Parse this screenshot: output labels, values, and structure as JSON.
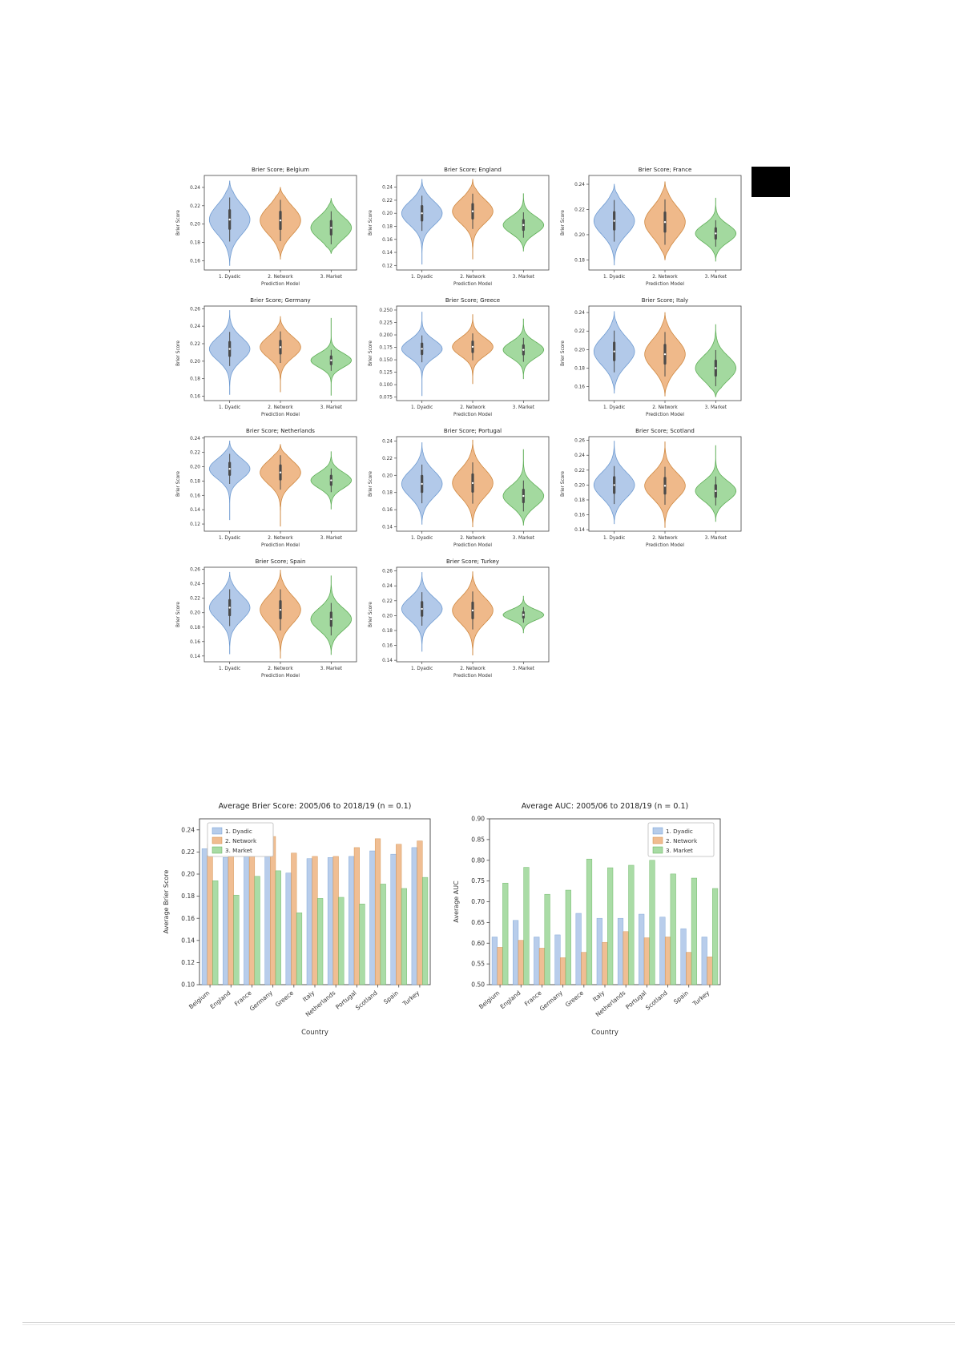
{
  "page": {
    "background": "#ffffff",
    "marker_color": "#000000"
  },
  "palette": {
    "dyadic": {
      "fill": "#aec6e8",
      "edge": "#6f9bd1"
    },
    "network": {
      "fill": "#eeb584",
      "edge": "#cf8942"
    },
    "market": {
      "fill": "#9ed79a",
      "edge": "#5fae57"
    }
  },
  "models": [
    "1. Dyadic",
    "2. Network",
    "3. Market"
  ],
  "chart_data": [
    {
      "type": "violin",
      "title": "Brier Score; Belgium",
      "xlabel": "Prediction Model",
      "ylabel": "Brier Score",
      "categories": [
        "1. Dyadic",
        "2. Network",
        "3. Market"
      ],
      "ylim": [
        0.15,
        0.253
      ],
      "yticks": [
        0.16,
        0.18,
        0.2,
        0.22,
        0.24
      ],
      "tick_decimals": 2,
      "series": [
        {
          "name": "1. Dyadic",
          "median": 0.205,
          "spread": 0.016,
          "min": 0.155,
          "max": 0.247
        },
        {
          "name": "2. Network",
          "median": 0.204,
          "spread": 0.015,
          "min": 0.162,
          "max": 0.24
        },
        {
          "name": "3. Market",
          "median": 0.196,
          "spread": 0.012,
          "min": 0.168,
          "max": 0.228
        }
      ]
    },
    {
      "type": "violin",
      "title": "Brier Score; England",
      "xlabel": "Prediction Model",
      "ylabel": "Brier Score",
      "categories": [
        "1. Dyadic",
        "2. Network",
        "3. Market"
      ],
      "ylim": [
        0.113,
        0.258
      ],
      "yticks": [
        0.12,
        0.14,
        0.16,
        0.18,
        0.2,
        0.22,
        0.24
      ],
      "tick_decimals": 2,
      "series": [
        {
          "name": "1. Dyadic",
          "median": 0.2,
          "spread": 0.018,
          "min": 0.122,
          "max": 0.252
        },
        {
          "name": "2. Network",
          "median": 0.203,
          "spread": 0.018,
          "min": 0.13,
          "max": 0.252
        },
        {
          "name": "3. Market",
          "median": 0.182,
          "spread": 0.013,
          "min": 0.142,
          "max": 0.23
        }
      ]
    },
    {
      "type": "violin",
      "title": "Brier Score; France",
      "xlabel": "Prediction Model",
      "ylabel": "Brier Score",
      "categories": [
        "1. Dyadic",
        "2. Network",
        "3. Market"
      ],
      "ylim": [
        0.172,
        0.247
      ],
      "yticks": [
        0.18,
        0.2,
        0.22,
        0.24
      ],
      "tick_decimals": 2,
      "series": [
        {
          "name": "1. Dyadic",
          "median": 0.211,
          "spread": 0.011,
          "min": 0.176,
          "max": 0.24
        },
        {
          "name": "2. Network",
          "median": 0.21,
          "spread": 0.012,
          "min": 0.18,
          "max": 0.242
        },
        {
          "name": "3. Market",
          "median": 0.201,
          "spread": 0.007,
          "min": 0.179,
          "max": 0.229
        }
      ]
    },
    {
      "type": "violin",
      "title": "Brier Score; Germany",
      "xlabel": "Prediction Model",
      "ylabel": "Brier Score",
      "categories": [
        "1. Dyadic",
        "2. Network",
        "3. Market"
      ],
      "ylim": [
        0.155,
        0.263
      ],
      "yticks": [
        0.16,
        0.18,
        0.2,
        0.22,
        0.24,
        0.26
      ],
      "tick_decimals": 2,
      "series": [
        {
          "name": "1. Dyadic",
          "median": 0.214,
          "spread": 0.013,
          "min": 0.162,
          "max": 0.258
        },
        {
          "name": "2. Network",
          "median": 0.216,
          "spread": 0.012,
          "min": 0.165,
          "max": 0.251
        },
        {
          "name": "3. Market",
          "median": 0.201,
          "spread": 0.008,
          "min": 0.161,
          "max": 0.249
        }
      ]
    },
    {
      "type": "violin",
      "title": "Brier Score; Greece",
      "xlabel": "Prediction Model",
      "ylabel": "Brier Score",
      "categories": [
        "1. Dyadic",
        "2. Network",
        "3. Market"
      ],
      "ylim": [
        0.068,
        0.258
      ],
      "yticks": [
        0.075,
        0.1,
        0.125,
        0.15,
        0.175,
        0.2,
        0.225,
        0.25
      ],
      "tick_decimals": 3,
      "series": [
        {
          "name": "1. Dyadic",
          "median": 0.172,
          "spread": 0.018,
          "min": 0.078,
          "max": 0.246
        },
        {
          "name": "2. Network",
          "median": 0.176,
          "spread": 0.018,
          "min": 0.102,
          "max": 0.241
        },
        {
          "name": "3. Market",
          "median": 0.17,
          "spread": 0.016,
          "min": 0.112,
          "max": 0.232
        }
      ]
    },
    {
      "type": "violin",
      "title": "Brier Score; Italy",
      "xlabel": "Prediction Model",
      "ylabel": "Brier Score",
      "categories": [
        "1. Dyadic",
        "2. Network",
        "3. Market"
      ],
      "ylim": [
        0.145,
        0.247
      ],
      "yticks": [
        0.16,
        0.18,
        0.2,
        0.22,
        0.24
      ],
      "tick_decimals": 2,
      "series": [
        {
          "name": "1. Dyadic",
          "median": 0.198,
          "spread": 0.015,
          "min": 0.153,
          "max": 0.241
        },
        {
          "name": "2. Network",
          "median": 0.195,
          "spread": 0.016,
          "min": 0.15,
          "max": 0.24
        },
        {
          "name": "3. Market",
          "median": 0.18,
          "spread": 0.013,
          "min": 0.149,
          "max": 0.227
        }
      ]
    },
    {
      "type": "violin",
      "title": "Brier Score; Netherlands",
      "xlabel": "Prediction Model",
      "ylabel": "Brier Score",
      "categories": [
        "1. Dyadic",
        "2. Network",
        "3. Market"
      ],
      "ylim": [
        0.11,
        0.242
      ],
      "yticks": [
        0.12,
        0.14,
        0.16,
        0.18,
        0.2,
        0.22,
        0.24
      ],
      "tick_decimals": 2,
      "series": [
        {
          "name": "1. Dyadic",
          "median": 0.197,
          "spread": 0.014,
          "min": 0.126,
          "max": 0.236
        },
        {
          "name": "2. Network",
          "median": 0.192,
          "spread": 0.016,
          "min": 0.117,
          "max": 0.231
        },
        {
          "name": "3. Market",
          "median": 0.181,
          "spread": 0.011,
          "min": 0.141,
          "max": 0.221
        }
      ]
    },
    {
      "type": "violin",
      "title": "Brier Score; Portugal",
      "xlabel": "Prediction Model",
      "ylabel": "Brier Score",
      "categories": [
        "1. Dyadic",
        "2. Network",
        "3. Market"
      ],
      "ylim": [
        0.135,
        0.245
      ],
      "yticks": [
        0.14,
        0.16,
        0.18,
        0.2,
        0.22,
        0.24
      ],
      "tick_decimals": 2,
      "series": [
        {
          "name": "1. Dyadic",
          "median": 0.19,
          "spread": 0.015,
          "min": 0.143,
          "max": 0.238
        },
        {
          "name": "2. Network",
          "median": 0.191,
          "spread": 0.016,
          "min": 0.14,
          "max": 0.241
        },
        {
          "name": "3. Market",
          "median": 0.176,
          "spread": 0.012,
          "min": 0.142,
          "max": 0.23
        }
      ]
    },
    {
      "type": "violin",
      "title": "Brier Score; Scotland",
      "xlabel": "Prediction Model",
      "ylabel": "Brier Score",
      "categories": [
        "1. Dyadic",
        "2. Network",
        "3. Market"
      ],
      "ylim": [
        0.138,
        0.265
      ],
      "yticks": [
        0.14,
        0.16,
        0.18,
        0.2,
        0.22,
        0.24,
        0.26
      ],
      "tick_decimals": 2,
      "series": [
        {
          "name": "1. Dyadic",
          "median": 0.2,
          "spread": 0.017,
          "min": 0.148,
          "max": 0.259
        },
        {
          "name": "2. Network",
          "median": 0.199,
          "spread": 0.017,
          "min": 0.143,
          "max": 0.258
        },
        {
          "name": "3. Market",
          "median": 0.192,
          "spread": 0.013,
          "min": 0.151,
          "max": 0.253
        }
      ]
    },
    {
      "type": "violin",
      "title": "Brier Score; Spain",
      "xlabel": "Prediction Model",
      "ylabel": "Brier Score",
      "categories": [
        "1. Dyadic",
        "2. Network",
        "3. Market"
      ],
      "ylim": [
        0.132,
        0.263
      ],
      "yticks": [
        0.14,
        0.16,
        0.18,
        0.2,
        0.22,
        0.24,
        0.26
      ],
      "tick_decimals": 2,
      "series": [
        {
          "name": "1. Dyadic",
          "median": 0.207,
          "spread": 0.017,
          "min": 0.143,
          "max": 0.256
        },
        {
          "name": "2. Network",
          "median": 0.204,
          "spread": 0.019,
          "min": 0.137,
          "max": 0.259
        },
        {
          "name": "3. Market",
          "median": 0.191,
          "spread": 0.015,
          "min": 0.142,
          "max": 0.251
        }
      ]
    },
    {
      "type": "violin",
      "title": "Brier Score; Turkey",
      "xlabel": "Prediction Model",
      "ylabel": "Brier Score",
      "categories": [
        "1. Dyadic",
        "2. Network",
        "3. Market"
      ],
      "ylim": [
        0.138,
        0.265
      ],
      "yticks": [
        0.14,
        0.16,
        0.18,
        0.2,
        0.22,
        0.24,
        0.26
      ],
      "tick_decimals": 2,
      "series": [
        {
          "name": "1. Dyadic",
          "median": 0.209,
          "spread": 0.015,
          "min": 0.152,
          "max": 0.258
        },
        {
          "name": "2. Network",
          "median": 0.207,
          "spread": 0.017,
          "min": 0.147,
          "max": 0.259
        },
        {
          "name": "3. Market",
          "median": 0.201,
          "spread": 0.007,
          "min": 0.177,
          "max": 0.226
        }
      ]
    },
    {
      "type": "bar",
      "title": "Average Brier Score: 2005/06 to 2018/19 (n = 0.1)",
      "xlabel": "Country",
      "ylabel": "Average Brier Score",
      "categories": [
        "Belgium",
        "England",
        "France",
        "Germany",
        "Greece",
        "Italy",
        "Netherlands",
        "Portugal",
        "Scotland",
        "Spain",
        "Turkey"
      ],
      "ylim": [
        0.1,
        0.25
      ],
      "yticks": [
        0.1,
        0.12,
        0.14,
        0.16,
        0.18,
        0.2,
        0.22,
        0.24
      ],
      "tick_decimals": 2,
      "legend": {
        "position": "upper-left",
        "entries": [
          "1. Dyadic",
          "2. Network",
          "3. Market"
        ]
      },
      "series": [
        {
          "name": "1. Dyadic",
          "key": "dyadic",
          "values": [
            0.223,
            0.215,
            0.222,
            0.227,
            0.201,
            0.214,
            0.215,
            0.216,
            0.221,
            0.218,
            0.224
          ]
        },
        {
          "name": "2. Network",
          "key": "network",
          "values": [
            0.227,
            0.225,
            0.223,
            0.234,
            0.219,
            0.216,
            0.216,
            0.224,
            0.232,
            0.227,
            0.23
          ]
        },
        {
          "name": "3. Market",
          "key": "market",
          "values": [
            0.194,
            0.181,
            0.198,
            0.203,
            0.165,
            0.178,
            0.179,
            0.173,
            0.191,
            0.187,
            0.197
          ]
        }
      ]
    },
    {
      "type": "bar",
      "title": "Average AUC: 2005/06 to 2018/19 (n = 0.1)",
      "xlabel": "Country",
      "ylabel": "Average AUC",
      "categories": [
        "Belgium",
        "England",
        "France",
        "Germany",
        "Greece",
        "Italy",
        "Netherlands",
        "Portugal",
        "Scotland",
        "Spain",
        "Turkey"
      ],
      "ylim": [
        0.5,
        0.9
      ],
      "yticks": [
        0.5,
        0.55,
        0.6,
        0.65,
        0.7,
        0.75,
        0.8,
        0.85,
        0.9
      ],
      "tick_decimals": 2,
      "legend": {
        "position": "upper-right",
        "entries": [
          "1. Dyadic",
          "2. Network",
          "3. Market"
        ]
      },
      "series": [
        {
          "name": "1. Dyadic",
          "key": "dyadic",
          "values": [
            0.615,
            0.655,
            0.615,
            0.62,
            0.672,
            0.66,
            0.66,
            0.67,
            0.663,
            0.635,
            0.615
          ]
        },
        {
          "name": "2. Network",
          "key": "network",
          "values": [
            0.59,
            0.607,
            0.588,
            0.565,
            0.578,
            0.602,
            0.628,
            0.613,
            0.615,
            0.578,
            0.567
          ]
        },
        {
          "name": "3. Market",
          "key": "market",
          "values": [
            0.745,
            0.783,
            0.718,
            0.728,
            0.803,
            0.782,
            0.788,
            0.8,
            0.767,
            0.757,
            0.732
          ]
        }
      ]
    }
  ]
}
